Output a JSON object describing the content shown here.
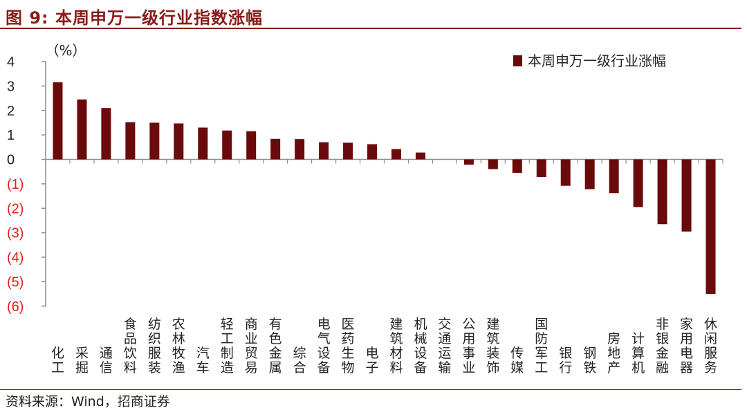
{
  "figure": {
    "title": "图 9:  本周申万一级行业指数涨幅",
    "source": "资料来源：Wind，招商证券"
  },
  "colors": {
    "bar": "#6B0A0A",
    "accent": "#8B1A1A",
    "negative_tick": "#E0201B",
    "positive_tick": "#222222"
  },
  "chart_data": {
    "type": "bar",
    "title": "",
    "unit_label": "（%）",
    "ylabel": "",
    "xlabel": "",
    "ylim": [
      -6,
      4
    ],
    "yticks": [
      "4",
      "3",
      "2",
      "1",
      "0",
      "(1)",
      "(2)",
      "(3)",
      "(4)",
      "(5)",
      "(6)"
    ],
    "grid": false,
    "legend": {
      "position": "top-right",
      "entries": [
        "本周申万一级行业涨幅"
      ]
    },
    "categories": [
      "化工",
      "采掘",
      "通信",
      "食品饮料",
      "纺织服装",
      "农林牧渔",
      "汽车",
      "轻工制造",
      "商业贸易",
      "有色金属",
      "综合",
      "电气设备",
      "医药生物",
      "电子",
      "建筑材料",
      "机械设备",
      "交通运输",
      "公用事业",
      "建筑装饰",
      "传媒",
      "国防军工",
      "银行",
      "钢铁",
      "房地产",
      "计算机",
      "非银金融",
      "家用电器",
      "休闲服务"
    ],
    "series": [
      {
        "name": "本周申万一级行业涨幅",
        "values": [
          3.15,
          2.45,
          2.1,
          1.52,
          1.5,
          1.47,
          1.3,
          1.18,
          1.15,
          0.84,
          0.83,
          0.7,
          0.68,
          0.62,
          0.42,
          0.28,
          0.0,
          -0.22,
          -0.4,
          -0.55,
          -0.72,
          -1.08,
          -1.22,
          -1.38,
          -1.95,
          -2.65,
          -2.95,
          -5.5
        ]
      }
    ]
  }
}
